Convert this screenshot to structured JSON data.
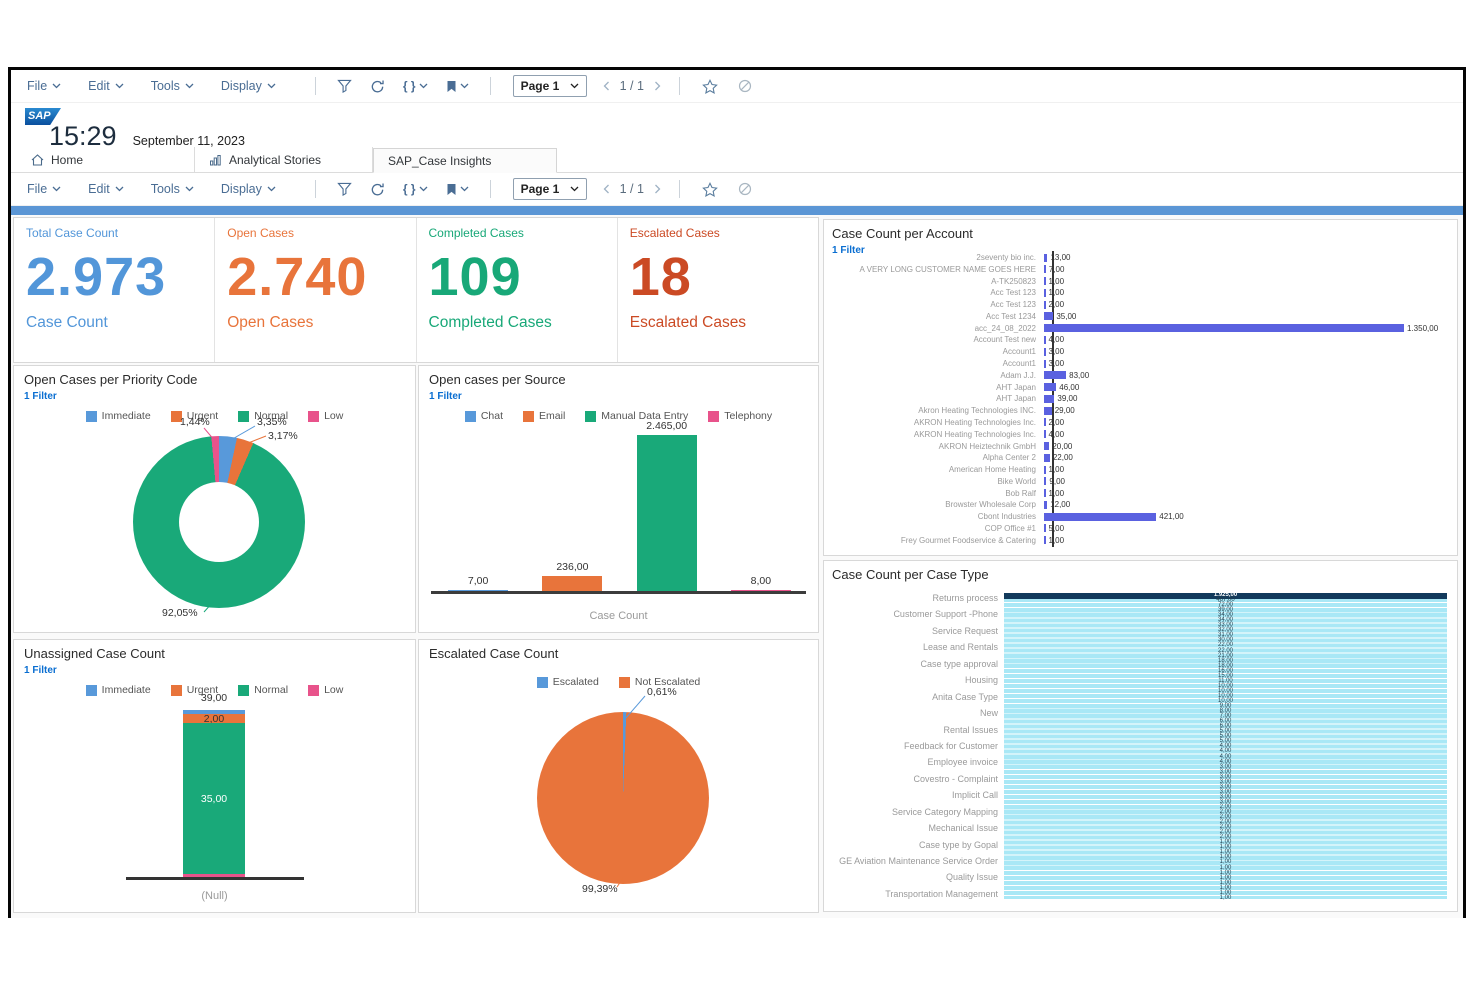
{
  "colors": {
    "kpi_blue": "#5296d9",
    "kpi_orange": "#e8743b",
    "kpi_green": "#18a878",
    "kpi_red": "#cb4a24",
    "series_blue": "#5899da",
    "series_orange": "#e8743b",
    "series_green": "#19a979",
    "series_pink": "#e8538b",
    "account_bar": "#5a61e0",
    "casetype_bar": "#a9e8f6",
    "casetype_top_bar": "#123a5c",
    "page_strip": "#5b96d5",
    "link_blue": "#0a6ed1"
  },
  "toolbar": {
    "menus": [
      "File",
      "Edit",
      "Tools",
      "Display"
    ],
    "tools": [
      {
        "name": "filter-icon"
      },
      {
        "name": "refresh-icon"
      },
      {
        "name": "script-icon",
        "chevron": true
      },
      {
        "name": "bookmark-icon",
        "chevron": true
      }
    ],
    "page_selector": "Page 1",
    "page_indicator": "1 / 1",
    "trailing": [
      {
        "name": "favorite-star-icon",
        "dim": false
      },
      {
        "name": "unavailable-icon",
        "dim": true
      }
    ]
  },
  "header": {
    "time": "15:29",
    "date": "September 11, 2023",
    "tabs": [
      {
        "label": "Home",
        "icon": "home-icon",
        "active": false
      },
      {
        "label": "Analytical Stories",
        "icon": "stories-icon",
        "active": false
      },
      {
        "label": "SAP_Case Insights",
        "icon": null,
        "active": true
      }
    ]
  },
  "kpis": [
    {
      "title": "Total Case Count",
      "value": "2.973",
      "subtitle": "Case Count",
      "color": "#5296d9"
    },
    {
      "title": "Open Cases",
      "value": "2.740",
      "subtitle": "Open Cases",
      "color": "#e8743b"
    },
    {
      "title": "Completed Cases",
      "value": "109",
      "subtitle": "Completed Cases",
      "color": "#18a878"
    },
    {
      "title": "Escalated Cases",
      "value": "18",
      "subtitle": "Escalated Cases",
      "color": "#cb4a24"
    }
  ],
  "panels": {
    "priority": {
      "title": "Open Cases per Priority Code",
      "filter": "1 Filter",
      "type": "donut",
      "slices": [
        {
          "label": "Immediate",
          "pct": 3.35,
          "display": "3,35%",
          "color": "#5899da"
        },
        {
          "label": "Urgent",
          "pct": 3.17,
          "display": "3,17%",
          "color": "#e8743b"
        },
        {
          "label": "Normal",
          "pct": 92.05,
          "display": "92,05%",
          "color": "#19a979"
        },
        {
          "label": "Low",
          "pct": 1.44,
          "display": "1,44%",
          "color": "#e8538b"
        }
      ]
    },
    "source": {
      "title": "Open cases per Source",
      "filter": "1 Filter",
      "type": "bar",
      "xlabel": "Case Count",
      "max": 2465,
      "bars": [
        {
          "label": "Chat",
          "value": 7,
          "display": "7,00",
          "color": "#5899da"
        },
        {
          "label": "Email",
          "value": 236,
          "display": "236,00",
          "color": "#e8743b"
        },
        {
          "label": "Manual Data Entry",
          "value": 2465,
          "display": "2.465,00",
          "color": "#19a979"
        },
        {
          "label": "Telephony",
          "value": 8,
          "display": "8,00",
          "color": "#e8538b"
        }
      ]
    },
    "unassigned": {
      "title": "Unassigned Case Count",
      "filter": "1 Filter",
      "type": "stacked-bar",
      "xlabel": "(Null)",
      "total_display": "39,00",
      "legend": [
        "Immediate",
        "Urgent",
        "Normal",
        "Low"
      ],
      "segments": [
        {
          "label": "Low",
          "value": 1,
          "display": "",
          "color": "#e8538b"
        },
        {
          "label": "Normal",
          "value": 35,
          "display": "35,00",
          "color": "#19a979",
          "text_color": "#ffffff"
        },
        {
          "label": "Urgent",
          "value": 2,
          "display": "2,00",
          "color": "#e8743b"
        },
        {
          "label": "Immediate",
          "value": 1,
          "display": "",
          "color": "#5899da"
        }
      ]
    },
    "escalated": {
      "title": "Escalated Case Count",
      "type": "pie",
      "slices": [
        {
          "label": "Escalated",
          "pct": 0.61,
          "display": "0,61%",
          "color": "#5899da"
        },
        {
          "label": "Not Escalated",
          "pct": 99.39,
          "display": "99,39%",
          "color": "#e8743b"
        }
      ]
    },
    "account": {
      "title": "Case Count per Account",
      "filter": "1 Filter",
      "type": "bar-horizontal",
      "max": 1350,
      "rows": [
        {
          "label": "2seventy bio inc.",
          "value": 13,
          "display": "13,00"
        },
        {
          "label": "A VERY LONG CUSTOMER NAME GOES HERE",
          "value": 7,
          "display": "7,00"
        },
        {
          "label": "A-TK250823",
          "value": 1,
          "display": "1,00"
        },
        {
          "label": "Acc Test 123",
          "value": 1,
          "display": "1,00"
        },
        {
          "label": "Acc Test 123",
          "value": 2,
          "display": "2,00"
        },
        {
          "label": "Acc Test 1234",
          "value": 35,
          "display": "35,00"
        },
        {
          "label": "acc_24_08_2022",
          "value": 1350,
          "display": "1.350,00"
        },
        {
          "label": "Account Test new",
          "value": 4,
          "display": "4,00"
        },
        {
          "label": "Account1",
          "value": 3,
          "display": "3,00"
        },
        {
          "label": "Account1",
          "value": 3,
          "display": "3,00"
        },
        {
          "label": "Adam J.J.",
          "value": 83,
          "display": "83,00"
        },
        {
          "label": "AHT Japan",
          "value": 46,
          "display": "46,00"
        },
        {
          "label": "AHT Japan",
          "value": 39,
          "display": "39,00"
        },
        {
          "label": "Akron Heating Technologies INC.",
          "value": 29,
          "display": "29,00"
        },
        {
          "label": "AKRON Heating Technologies Inc.",
          "value": 2,
          "display": "2,00"
        },
        {
          "label": "AKRON Heating Technologies Inc.",
          "value": 4,
          "display": "4,00"
        },
        {
          "label": "AKRON Heiztechnik GmbH",
          "value": 20,
          "display": "20,00"
        },
        {
          "label": "Alpha Center 2",
          "value": 22,
          "display": "22,00"
        },
        {
          "label": "American Home Heating",
          "value": 1,
          "display": "1,00"
        },
        {
          "label": "Bike World",
          "value": 9,
          "display": "9,00"
        },
        {
          "label": "Bob Ralf",
          "value": 1,
          "display": "1,00"
        },
        {
          "label": "Browster Wholesale Corp",
          "value": 12,
          "display": "12,00"
        },
        {
          "label": "Cbont Industries",
          "value": 421,
          "display": "421,00"
        },
        {
          "label": "COP Office #1",
          "value": 5,
          "display": "5,00"
        },
        {
          "label": "Frey Gourmet Foodservice & Catering",
          "value": 1,
          "display": "1,00"
        }
      ]
    },
    "case_type": {
      "title": "Case Count per Case Type",
      "type": "bar-horizontal-dense",
      "labels": [
        "Returns process",
        "Customer Support -Phone",
        "Service Request",
        "Lease and Rentals",
        "Case type approval",
        "Housing",
        "Anita Case Type",
        "New",
        "Rental Issues",
        "Feedback for Customer",
        "Employee invoice",
        "Covestro - Complaint",
        "Implicit Call",
        "Service Category Mapping",
        "Mechanical Issue",
        "Case type by Gopal",
        "GE Aviation Maintenance Service Order",
        "Quality Issue",
        "Transportation Management"
      ],
      "values": [
        "1.925,00",
        "467,00",
        "72,00",
        "39,00",
        "34,00",
        "34,00",
        "33,00",
        "32,00",
        "31,00",
        "30,00",
        "22,00",
        "22,00",
        "21,00",
        "18,00",
        "18,00",
        "16,00",
        "15,00",
        "11,00",
        "10,00",
        "10,00",
        "10,00",
        "10,00",
        "9,00",
        "8,00",
        "7,00",
        "6,00",
        "6,00",
        "5,00",
        "5,00",
        "5,00",
        "4,00",
        "4,00",
        "4,00",
        "4,00",
        "3,00",
        "3,00",
        "3,00",
        "3,00",
        "3,00",
        "3,00",
        "3,00",
        "3,00",
        "2,00",
        "2,00",
        "2,00",
        "2,00",
        "2,00",
        "2,00",
        "2,00",
        "1,00",
        "1,00",
        "1,00",
        "1,00",
        "1,00",
        "1,00",
        "1,00",
        "1,00",
        "1,00",
        "1,00",
        "1,00",
        "1,00"
      ]
    }
  }
}
